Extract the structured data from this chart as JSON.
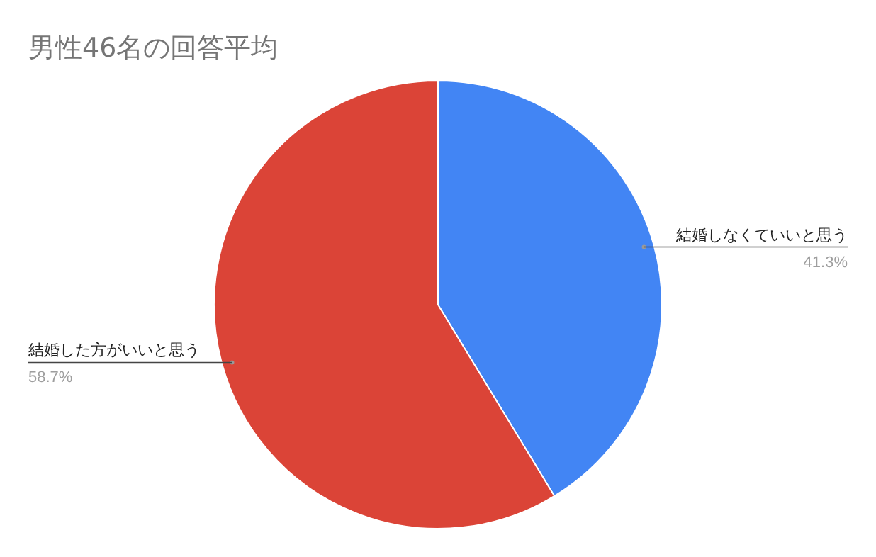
{
  "chart_data": {
    "type": "pie",
    "title": "男性46名の回答平均",
    "categories": [
      "結婚しなくていいと思う",
      "結婚した方がいいと思う"
    ],
    "values": [
      41.3,
      58.7
    ],
    "colors": [
      "#4285f4",
      "#db4437"
    ],
    "value_labels": [
      "41.3%",
      "58.7%"
    ]
  }
}
